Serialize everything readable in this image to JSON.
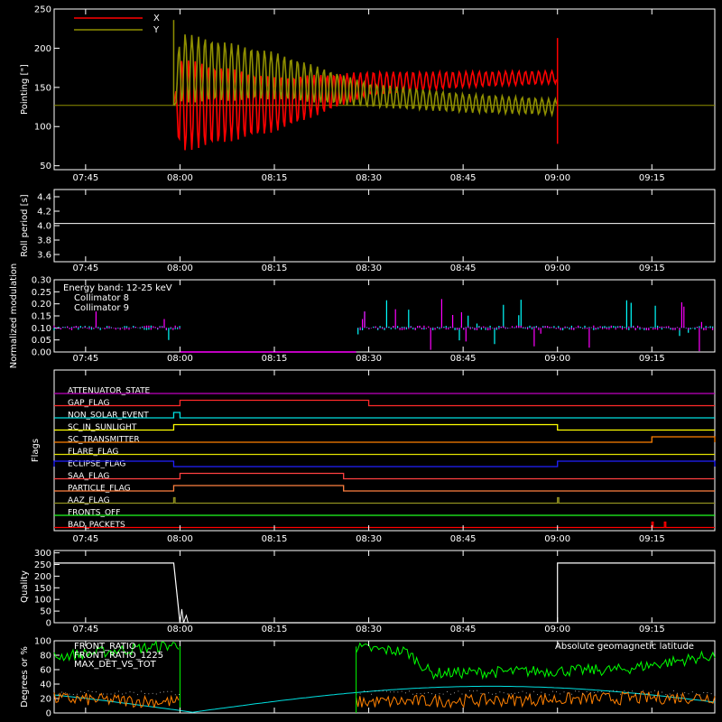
{
  "time_ticks": [
    "07:45",
    "08:00",
    "08:15",
    "08:30",
    "08:45",
    "09:00",
    "09:15"
  ],
  "chart_data": [
    {
      "type": "line",
      "id": "pointing",
      "ylabel": "Pointing [\"]",
      "ylim": [
        45,
        250
      ],
      "yticks": [
        "50",
        "100",
        "150",
        "200",
        "250"
      ],
      "xlim": [
        "07:40",
        "09:25"
      ],
      "series": [
        {
          "name": "X",
          "color": "#ff0000",
          "x": [
            "07:40",
            "07:59",
            "08:00",
            "08:15",
            "08:30",
            "08:45",
            "09:00",
            "09:25"
          ],
          "y": [
            127,
            127,
            127,
            128,
            155,
            160,
            163,
            127
          ],
          "amplitude": [
            0,
            0,
            60,
            35,
            15,
            10,
            8,
            0
          ]
        },
        {
          "name": "Y",
          "color": "#8f8f00",
          "x": [
            "07:40",
            "07:59",
            "08:00",
            "08:15",
            "08:30",
            "08:45",
            "09:00",
            "09:25"
          ],
          "y": [
            127,
            127,
            175,
            165,
            140,
            130,
            125,
            127
          ],
          "amplitude": [
            0,
            0,
            45,
            30,
            15,
            12,
            10,
            0
          ]
        }
      ]
    },
    {
      "type": "line",
      "id": "roll",
      "ylabel": "Roll period [s]",
      "ylim": [
        3.5,
        4.5
      ],
      "yticks": [
        "3.6",
        "3.8",
        "4.0",
        "4.2",
        "4.4"
      ],
      "series": [
        {
          "name": "",
          "color": "#ffffff",
          "value": 4.03
        }
      ]
    },
    {
      "type": "line",
      "id": "modulation",
      "ylabel": "Normalized modulation",
      "ylim": [
        0,
        0.3
      ],
      "yticks": [
        "0.00",
        "0.05",
        "0.10",
        "0.15",
        "0.20",
        "0.25",
        "0.30"
      ],
      "annotation": "Energy band: 12-25 keV",
      "series": [
        {
          "name": "Collimator 8",
          "color": "#00ffff",
          "baseline": 0.1
        },
        {
          "name": "Collimator 9",
          "color": "#ff00ff",
          "baseline": 0.1
        }
      ],
      "gap": [
        "08:00",
        "08:28"
      ]
    },
    {
      "type": "line",
      "id": "flags",
      "ylabel": "Flags",
      "flags": [
        {
          "name": "ATTENUATOR_STATE",
          "color": "#c000c0",
          "on": []
        },
        {
          "name": "GAP_FLAG",
          "color": "#ff2a2a",
          "on": [
            [
              "08:00",
              "08:30"
            ]
          ]
        },
        {
          "name": "NON_SOLAR_EVENT",
          "color": "#00e0e0",
          "on": [
            [
              "07:59",
              "08:00"
            ]
          ]
        },
        {
          "name": "SC_IN_SUNLIGHT",
          "color": "#ffff00",
          "on": [
            [
              "07:59",
              "09:00"
            ]
          ]
        },
        {
          "name": "SC_TRANSMITTER",
          "color": "#ff8000",
          "on": [
            [
              "09:15",
              "09:25"
            ]
          ]
        },
        {
          "name": "FLARE_FLAG",
          "color": "#e0e000",
          "on": []
        },
        {
          "name": "ECLIPSE_FLAG",
          "color": "#2020ff",
          "on": [
            [
              "07:40",
              "07:59"
            ],
            [
              "09:00",
              "09:25"
            ]
          ]
        },
        {
          "name": "SAA_FLAG",
          "color": "#ff4040",
          "on": [
            [
              "08:00",
              "08:26"
            ]
          ]
        },
        {
          "name": "PARTICLE_FLAG",
          "color": "#ff8040",
          "on": [
            [
              "07:59",
              "08:26"
            ]
          ]
        },
        {
          "name": "AAZ_FLAG",
          "color": "#909020",
          "on": [
            [
              "07:59",
              "07:59"
            ],
            [
              "09:00",
              "09:00"
            ]
          ]
        },
        {
          "name": "FRONTS_OFF",
          "color": "#20ff20",
          "on": []
        },
        {
          "name": "BAD_PACKETS",
          "color": "#ff0000",
          "on": [
            [
              "09:15",
              "09:15"
            ],
            [
              "09:17",
              "09:17"
            ]
          ]
        }
      ]
    },
    {
      "type": "line",
      "id": "quality",
      "ylabel": "Quality",
      "ylim": [
        0,
        310
      ],
      "yticks": [
        "0",
        "50",
        "100",
        "150",
        "200",
        "250",
        "300"
      ],
      "series": [
        {
          "name": "",
          "color": "#ffffff",
          "x": [
            "07:40",
            "07:59",
            "08:00",
            "09:00",
            "09:00",
            "09:25"
          ],
          "y": [
            256,
            256,
            0,
            0,
            256,
            256
          ]
        }
      ]
    },
    {
      "type": "line",
      "id": "bottom",
      "ylabel": "Degrees or %",
      "ylim": [
        0,
        100
      ],
      "yticks": [
        "0",
        "20",
        "40",
        "60",
        "80",
        "100"
      ],
      "series": [
        {
          "name": "FRONT_RATIO",
          "color": "#ffffff"
        },
        {
          "name": "FRONT_RATIO_1225",
          "color": "#00ff00",
          "segments": [
            [
              [
                "07:40",
                78
              ],
              [
                "08:00",
                95
              ]
            ],
            [
              [
                "08:28",
                90
              ],
              [
                "08:36",
                85
              ],
              [
                "08:40",
                55
              ],
              [
                "09:10",
                60
              ],
              [
                "09:25",
                80
              ]
            ]
          ]
        },
        {
          "name": "MAX_DET_VS_TOT",
          "color": "#ff8000",
          "segments": [
            [
              [
                "07:40",
                20
              ],
              [
                "08:00",
                15
              ]
            ],
            [
              [
                "08:28",
                15
              ],
              [
                "09:25",
                22
              ]
            ]
          ]
        },
        {
          "name": "Absolute geomagnetic latitude",
          "color": "#00e0e0"
        }
      ]
    }
  ]
}
